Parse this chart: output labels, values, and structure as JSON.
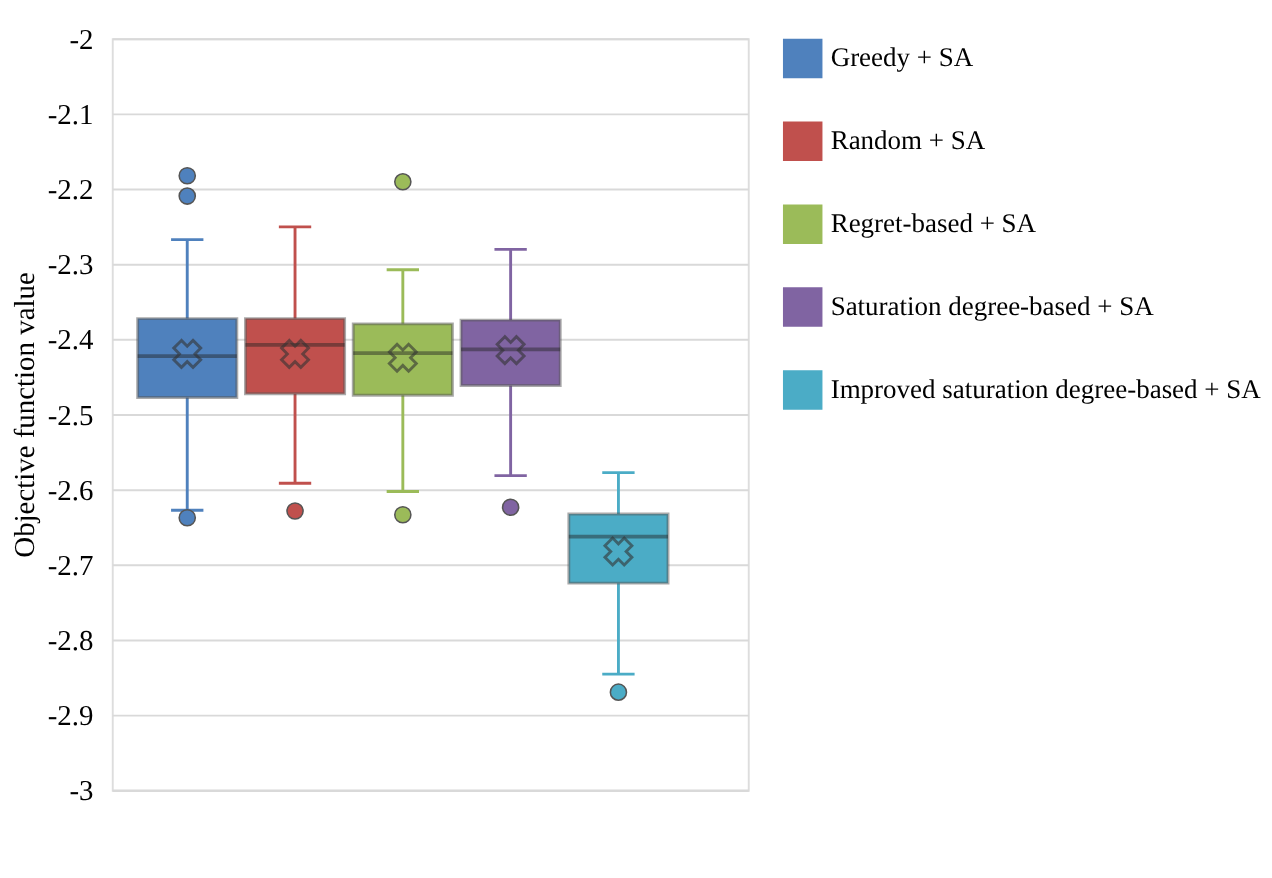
{
  "chart_data": {
    "type": "box",
    "ylabel": "Objective function value",
    "categories": [
      null
    ],
    "ylim": [
      -3,
      -2
    ],
    "yticks": [
      -3,
      -2.9,
      -2.8,
      -2.7,
      -2.6,
      -2.5,
      -2.4,
      -2.3,
      -2.2,
      -2.1,
      -2
    ],
    "grid": "y",
    "legend": "right",
    "tick_labels": "y",
    "series": [
      {
        "name": "Greedy + SA",
        "color": "#4f81bd",
        "boxes": [
          {
            "low": -2.628,
            "q1": -2.478,
            "median": -2.423,
            "q3": -2.373,
            "high": -2.268,
            "mean": -2.42,
            "outliers": [
              -2.183,
              -2.21,
              -2.638
            ]
          }
        ]
      },
      {
        "name": "Random + SA",
        "color": "#c0504d",
        "boxes": [
          {
            "low": -2.592,
            "q1": -2.473,
            "median": -2.408,
            "q3": -2.373,
            "high": -2.251,
            "mean": -2.42,
            "outliers": [
              -2.629
            ]
          }
        ]
      },
      {
        "name": "Regret-based + SA",
        "color": "#9bbb59",
        "boxes": [
          {
            "low": -2.603,
            "q1": -2.475,
            "median": -2.419,
            "q3": -2.38,
            "high": -2.308,
            "mean": -2.425,
            "outliers": [
              -2.191,
              -2.634
            ]
          }
        ]
      },
      {
        "name": "Saturation degree-based + SA",
        "color": "#8064a2",
        "boxes": [
          {
            "low": -2.582,
            "q1": -2.462,
            "median": -2.414,
            "q3": -2.375,
            "high": -2.281,
            "mean": -2.415,
            "outliers": [
              -2.624
            ]
          }
        ]
      },
      {
        "name": "Improved saturation degree-based + SA",
        "color": "#4bacc6",
        "boxes": [
          {
            "low": -2.846,
            "q1": -2.725,
            "median": -2.663,
            "q3": -2.633,
            "high": -2.578,
            "mean": -2.683,
            "outliers": [
              -2.87
            ]
          }
        ]
      }
    ]
  }
}
